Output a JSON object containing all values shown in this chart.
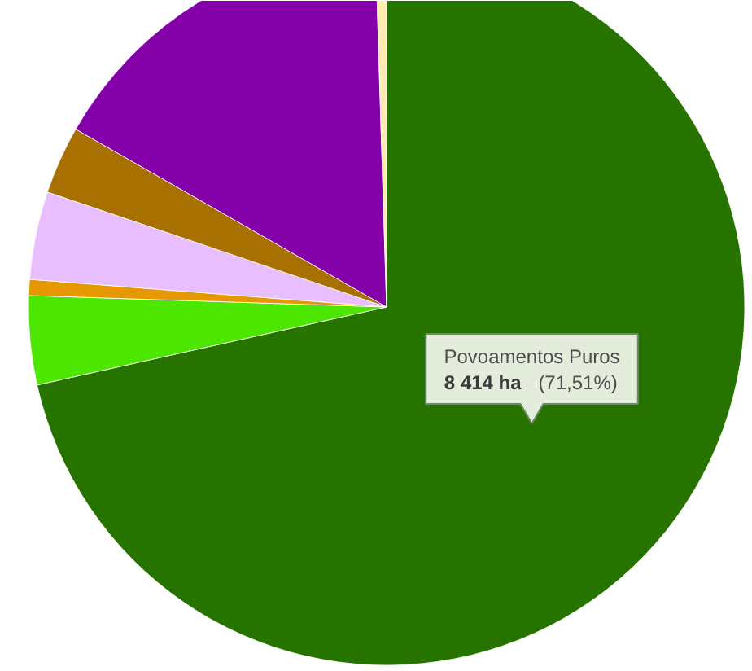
{
  "chart_data": {
    "type": "pie",
    "categories": [
      "Povoamentos Puros",
      null,
      null,
      null,
      null,
      null,
      null
    ],
    "values": [
      8414,
      471,
      85,
      467,
      361,
      1911,
      58
    ],
    "colors": [
      "#267300",
      "#4ce600",
      "#e69800",
      "#e8beff",
      "#a87000",
      "#8400a8",
      "#ffebaf"
    ],
    "value_labels": [
      "8 414 ha (71,51%)",
      null,
      null,
      null,
      null,
      null,
      null
    ]
  }
}
